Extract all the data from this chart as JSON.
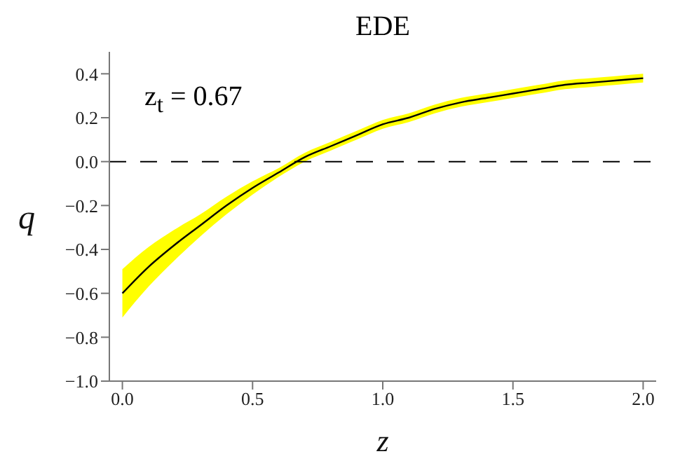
{
  "chart_data": {
    "type": "line",
    "title": "EDE",
    "xlabel": "z",
    "ylabel": "q",
    "annotations": [
      "z$_{t}$ = 0.67"
    ],
    "x": [
      0,
      0.1,
      0.2,
      0.3,
      0.4,
      0.5,
      0.6,
      0.7,
      0.8,
      0.9,
      1.0,
      1.1,
      1.2,
      1.3,
      1.4,
      1.5,
      1.6,
      1.7,
      1.8,
      1.9,
      2.0
    ],
    "series": [
      {
        "color": "#000000",
        "values": [
          -0.6,
          -0.48,
          -0.38,
          -0.29,
          -0.2,
          -0.12,
          -0.05,
          0.02,
          0.07,
          0.12,
          0.17,
          0.2,
          0.24,
          0.27,
          0.29,
          0.31,
          0.33,
          0.35,
          0.36,
          0.37,
          0.38
        ],
        "lower": [
          -0.71,
          -0.57,
          -0.45,
          -0.34,
          -0.24,
          -0.15,
          -0.07,
          0.0,
          0.05,
          0.1,
          0.15,
          0.18,
          0.22,
          0.25,
          0.27,
          0.29,
          0.31,
          0.33,
          0.34,
          0.35,
          0.36
        ],
        "upper": [
          -0.49,
          -0.39,
          -0.31,
          -0.24,
          -0.16,
          -0.09,
          -0.03,
          0.04,
          0.09,
          0.14,
          0.19,
          0.22,
          0.26,
          0.29,
          0.31,
          0.33,
          0.35,
          0.37,
          0.38,
          0.39,
          0.4
        ]
      }
    ],
    "xlim": [
      -0.05,
      2.05
    ],
    "ylim": [
      -1.0,
      0.5
    ],
    "xticks": [
      {
        "value": 0,
        "label": "0.0"
      },
      0.5,
      {
        "value": 1,
        "label": "1.0"
      },
      1.5,
      {
        "value": 2,
        "label": "2.0"
      }
    ],
    "yticks": [
      {
        "value": -1,
        "label": "−1.0"
      },
      {
        "value": -0.8,
        "label": "−0.8"
      },
      {
        "value": -0.6,
        "label": "−0.6"
      },
      {
        "value": -0.4,
        "label": "−0.4"
      },
      {
        "value": -0.2,
        "label": "−0.2"
      },
      {
        "value": 0,
        "label": "0.0"
      },
      0.2,
      0.4
    ],
    "ref_lines": [
      {
        "axis": "y",
        "value": 0,
        "color": "#000000",
        "line_style": "dashed"
      }
    ],
    "grid": false,
    "legend": false,
    "marker": "none",
    "line_style": "solid"
  }
}
